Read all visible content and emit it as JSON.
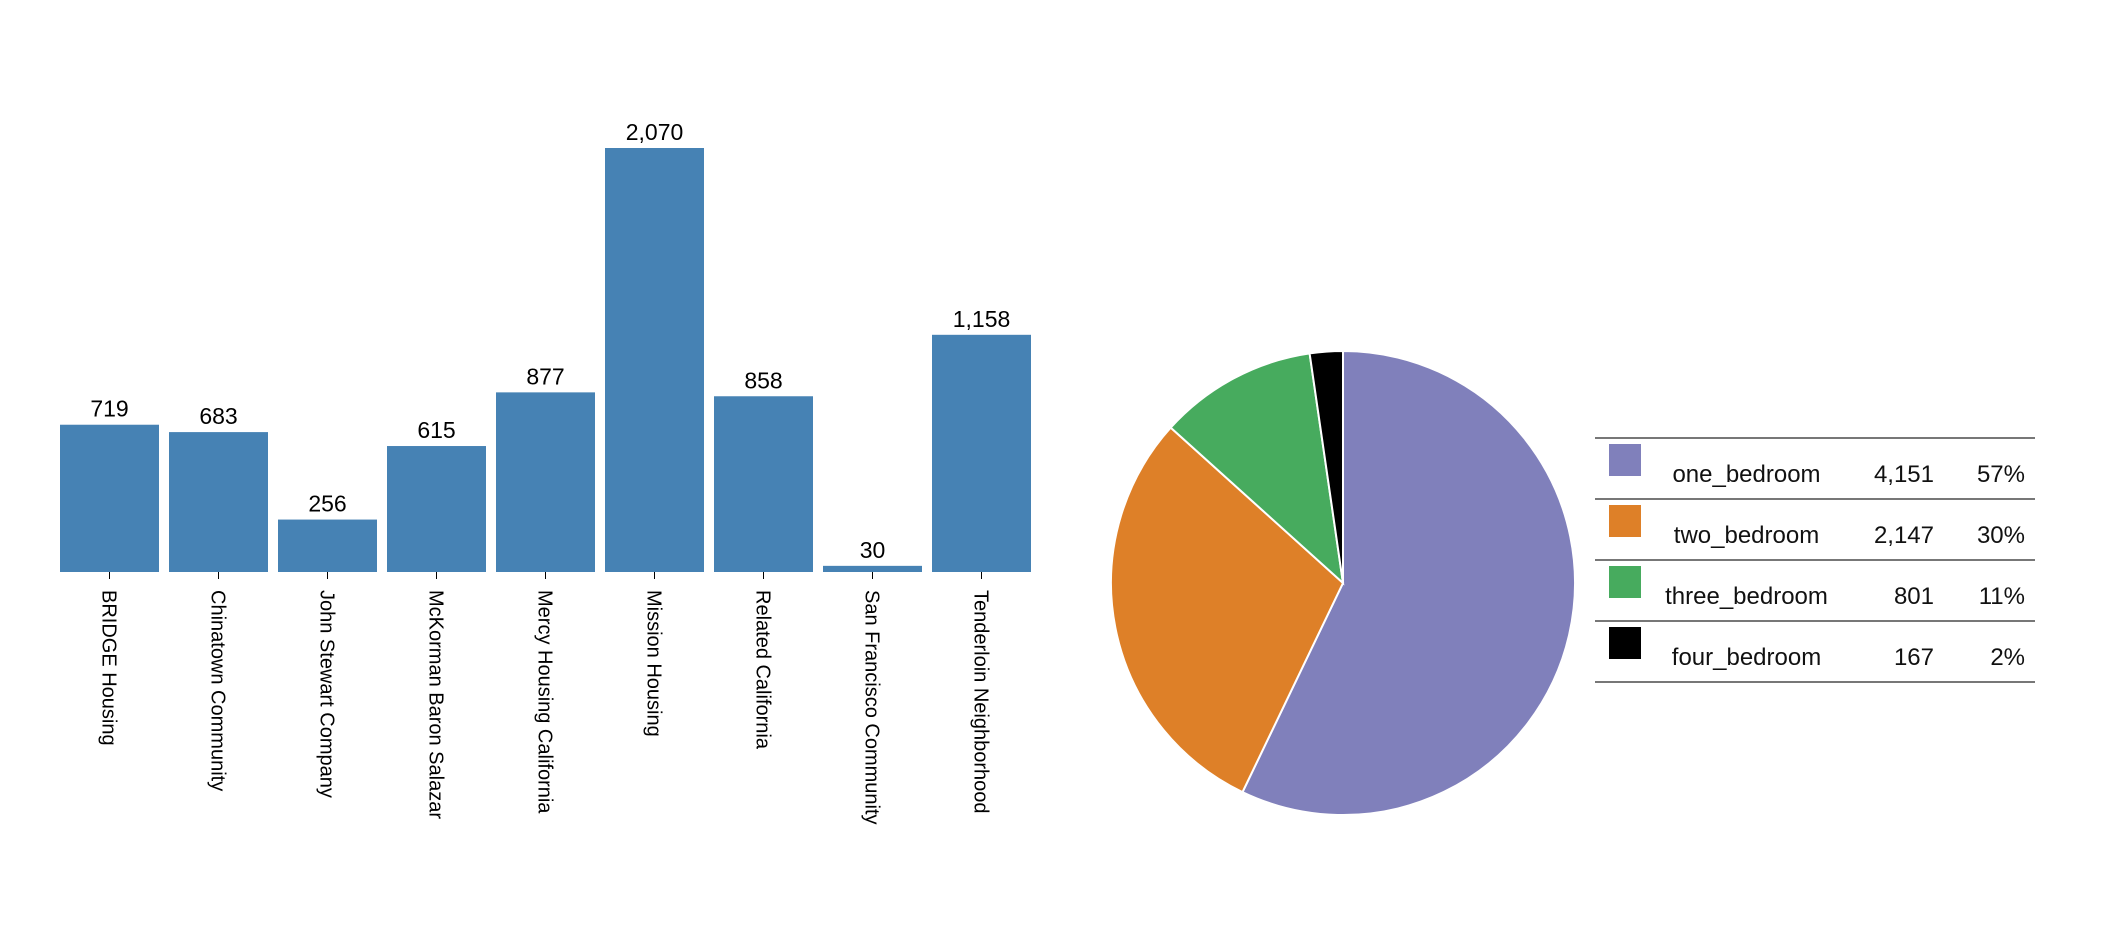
{
  "chart_data": [
    {
      "type": "bar",
      "categories": [
        "BRIDGE Housing",
        "Chinatown Community",
        "John Stewart Company",
        "McKorman Baron Salazar",
        "Mercy Housing California",
        "Mission Housing",
        "Related California",
        "San Francisco Community",
        "Tenderloin Neighborhood"
      ],
      "values": [
        719,
        683,
        256,
        615,
        877,
        2070,
        858,
        30,
        1158
      ],
      "value_labels": [
        "719",
        "683",
        "256",
        "615",
        "877",
        "2,070",
        "858",
        "30",
        "1,158"
      ],
      "title": "",
      "xlabel": "",
      "ylabel": "",
      "ylim": [
        0,
        2070
      ],
      "grid": false,
      "color": "#4682b4"
    },
    {
      "type": "pie",
      "slices": [
        {
          "label": "one_bedroom",
          "value": 4151,
          "value_label": "4,151",
          "percent_label": "57%",
          "color": "#8080bb"
        },
        {
          "label": "two_bedroom",
          "value": 2147,
          "value_label": "2,147",
          "percent_label": "30%",
          "color": "#de8028"
        },
        {
          "label": "three_bedroom",
          "value": 801,
          "value_label": "801",
          "percent_label": "11%",
          "color": "#47ab5e"
        },
        {
          "label": "four_bedroom",
          "value": 167,
          "value_label": "167",
          "percent_label": "2%",
          "color": "#000000"
        }
      ],
      "legend_placement": "right"
    }
  ]
}
